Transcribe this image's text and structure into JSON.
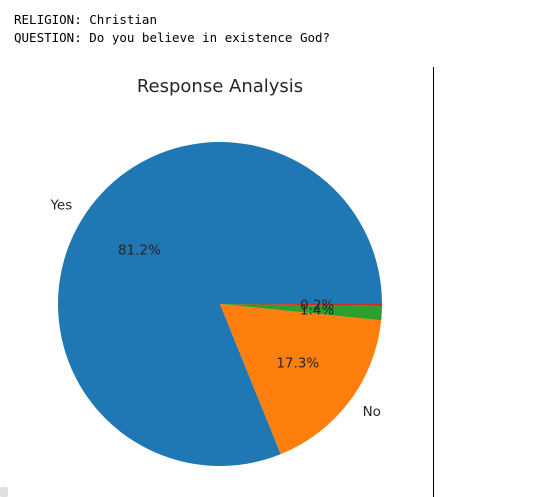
{
  "console": {
    "line1": "RELIGION: Christian",
    "line2": "QUESTION: Do you believe in existence God?"
  },
  "chart_data": {
    "type": "pie",
    "title": "Response Analysis",
    "start_angle_deg": 0,
    "direction": "counterclockwise",
    "slices": [
      {
        "label": "Yes",
        "value": 81.2,
        "pct_label": "81.2%",
        "color": "#1f77b4"
      },
      {
        "label": "No",
        "value": 17.3,
        "pct_label": "17.3%",
        "color": "#ff7f0e"
      },
      {
        "label": "",
        "value": 1.4,
        "pct_label": "1.4%",
        "color": "#2ca02c"
      },
      {
        "label": "",
        "value": 0.2,
        "pct_label": "0.2%",
        "color": "#d62728"
      }
    ]
  }
}
